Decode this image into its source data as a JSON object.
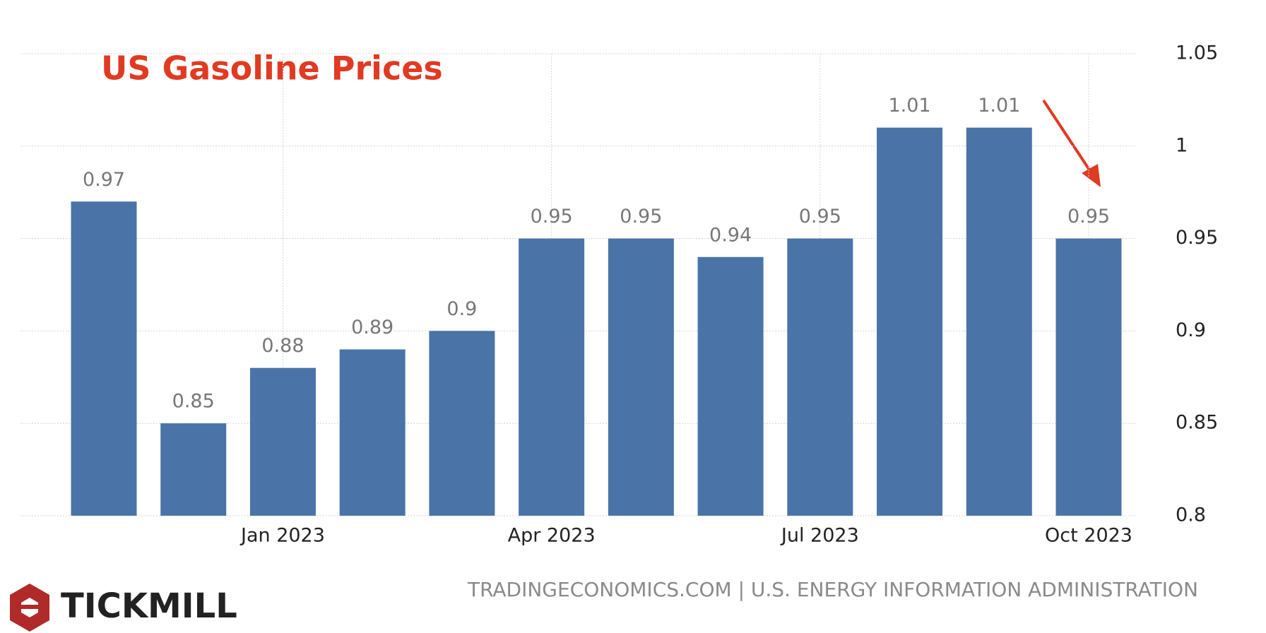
{
  "chart_data": {
    "type": "bar",
    "title": "US Gasoline Prices",
    "categories": [
      null,
      null,
      "Jan 2023",
      null,
      null,
      "Apr 2023",
      null,
      null,
      "Jul 2023",
      null,
      null,
      "Oct 2023"
    ],
    "values": [
      0.97,
      0.85,
      0.88,
      0.89,
      0.9,
      0.95,
      0.95,
      0.94,
      0.95,
      1.01,
      1.01,
      0.95
    ],
    "color": "#4a74a8",
    "ylim": [
      0.8,
      1.05
    ],
    "yticks": [
      0.8,
      0.85,
      0.9,
      0.95,
      1,
      1.05
    ],
    "grid": true,
    "source": "TRADINGECONOMICS.COM | U.S. ENERGY INFORMATION ADMINISTRATION",
    "brand": "TICKMILL"
  }
}
